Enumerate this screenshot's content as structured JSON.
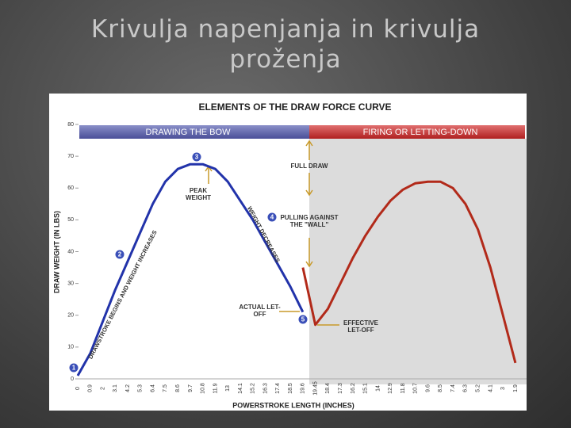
{
  "slide": {
    "title": "Krivulja napenjanja in krivulja proženja"
  },
  "chart_data": {
    "type": "line",
    "title": "ELEMENTS OF THE DRAW FORCE CURVE",
    "phases": [
      "DRAWING THE BOW",
      "FIRING OR LETTING-DOWN"
    ],
    "x_label": "POWERSTROKE LENGTH (INCHES)",
    "y_label": "DRAW WEIGHT (IN LBS)",
    "categories": [
      "0",
      "0.9",
      "2",
      "3.1",
      "4.2",
      "5.3",
      "6.4",
      "7.5",
      "8.6",
      "9.7",
      "10.8",
      "11.9",
      "13",
      "14.1",
      "15.2",
      "16.3",
      "17.4",
      "18.5",
      "19.6",
      "19.45",
      "18.4",
      "17.3",
      "16.2",
      "15.1",
      "14",
      "12.9",
      "11.8",
      "10.7",
      "9.6",
      "8.5",
      "7.4",
      "6.3",
      "5.2",
      "4.1",
      "3",
      "1.9"
    ],
    "series": [
      {
        "name": "Drawing the bow",
        "color": "#2233aa",
        "values": [
          1,
          8,
          18,
          28,
          37,
          46,
          55,
          62,
          66,
          67.5,
          67.5,
          66,
          62,
          56,
          50,
          43,
          36,
          29,
          21,
          null,
          null,
          null,
          null,
          null,
          null,
          null,
          null,
          null,
          null,
          null,
          null,
          null,
          null,
          null,
          null,
          null
        ]
      },
      {
        "name": "Firing or letting-down",
        "color": "#b22a1a",
        "values": [
          null,
          null,
          null,
          null,
          null,
          null,
          null,
          null,
          null,
          null,
          null,
          null,
          null,
          null,
          null,
          null,
          null,
          null,
          35,
          17,
          22,
          30,
          38,
          45,
          51,
          56,
          59.5,
          61.5,
          62,
          62,
          60,
          55,
          47,
          35,
          20,
          5
        ]
      }
    ],
    "ylim": [
      0,
      80
    ],
    "yticks": [
      0,
      10,
      20,
      30,
      40,
      50,
      60,
      70,
      80
    ],
    "annotations": [
      "FULL DRAW",
      "PEAK WEIGHT",
      "PULLING AGAINST THE \"WALL\"",
      "WEIGHT DECREASES",
      "DRAWSTROKE BEGINS AND WEIGHT INCREASES",
      "ACTUAL LET-OFF",
      "EFFECTIVE LET-OFF"
    ],
    "markers": [
      "1",
      "2",
      "3",
      "4",
      "5"
    ]
  }
}
